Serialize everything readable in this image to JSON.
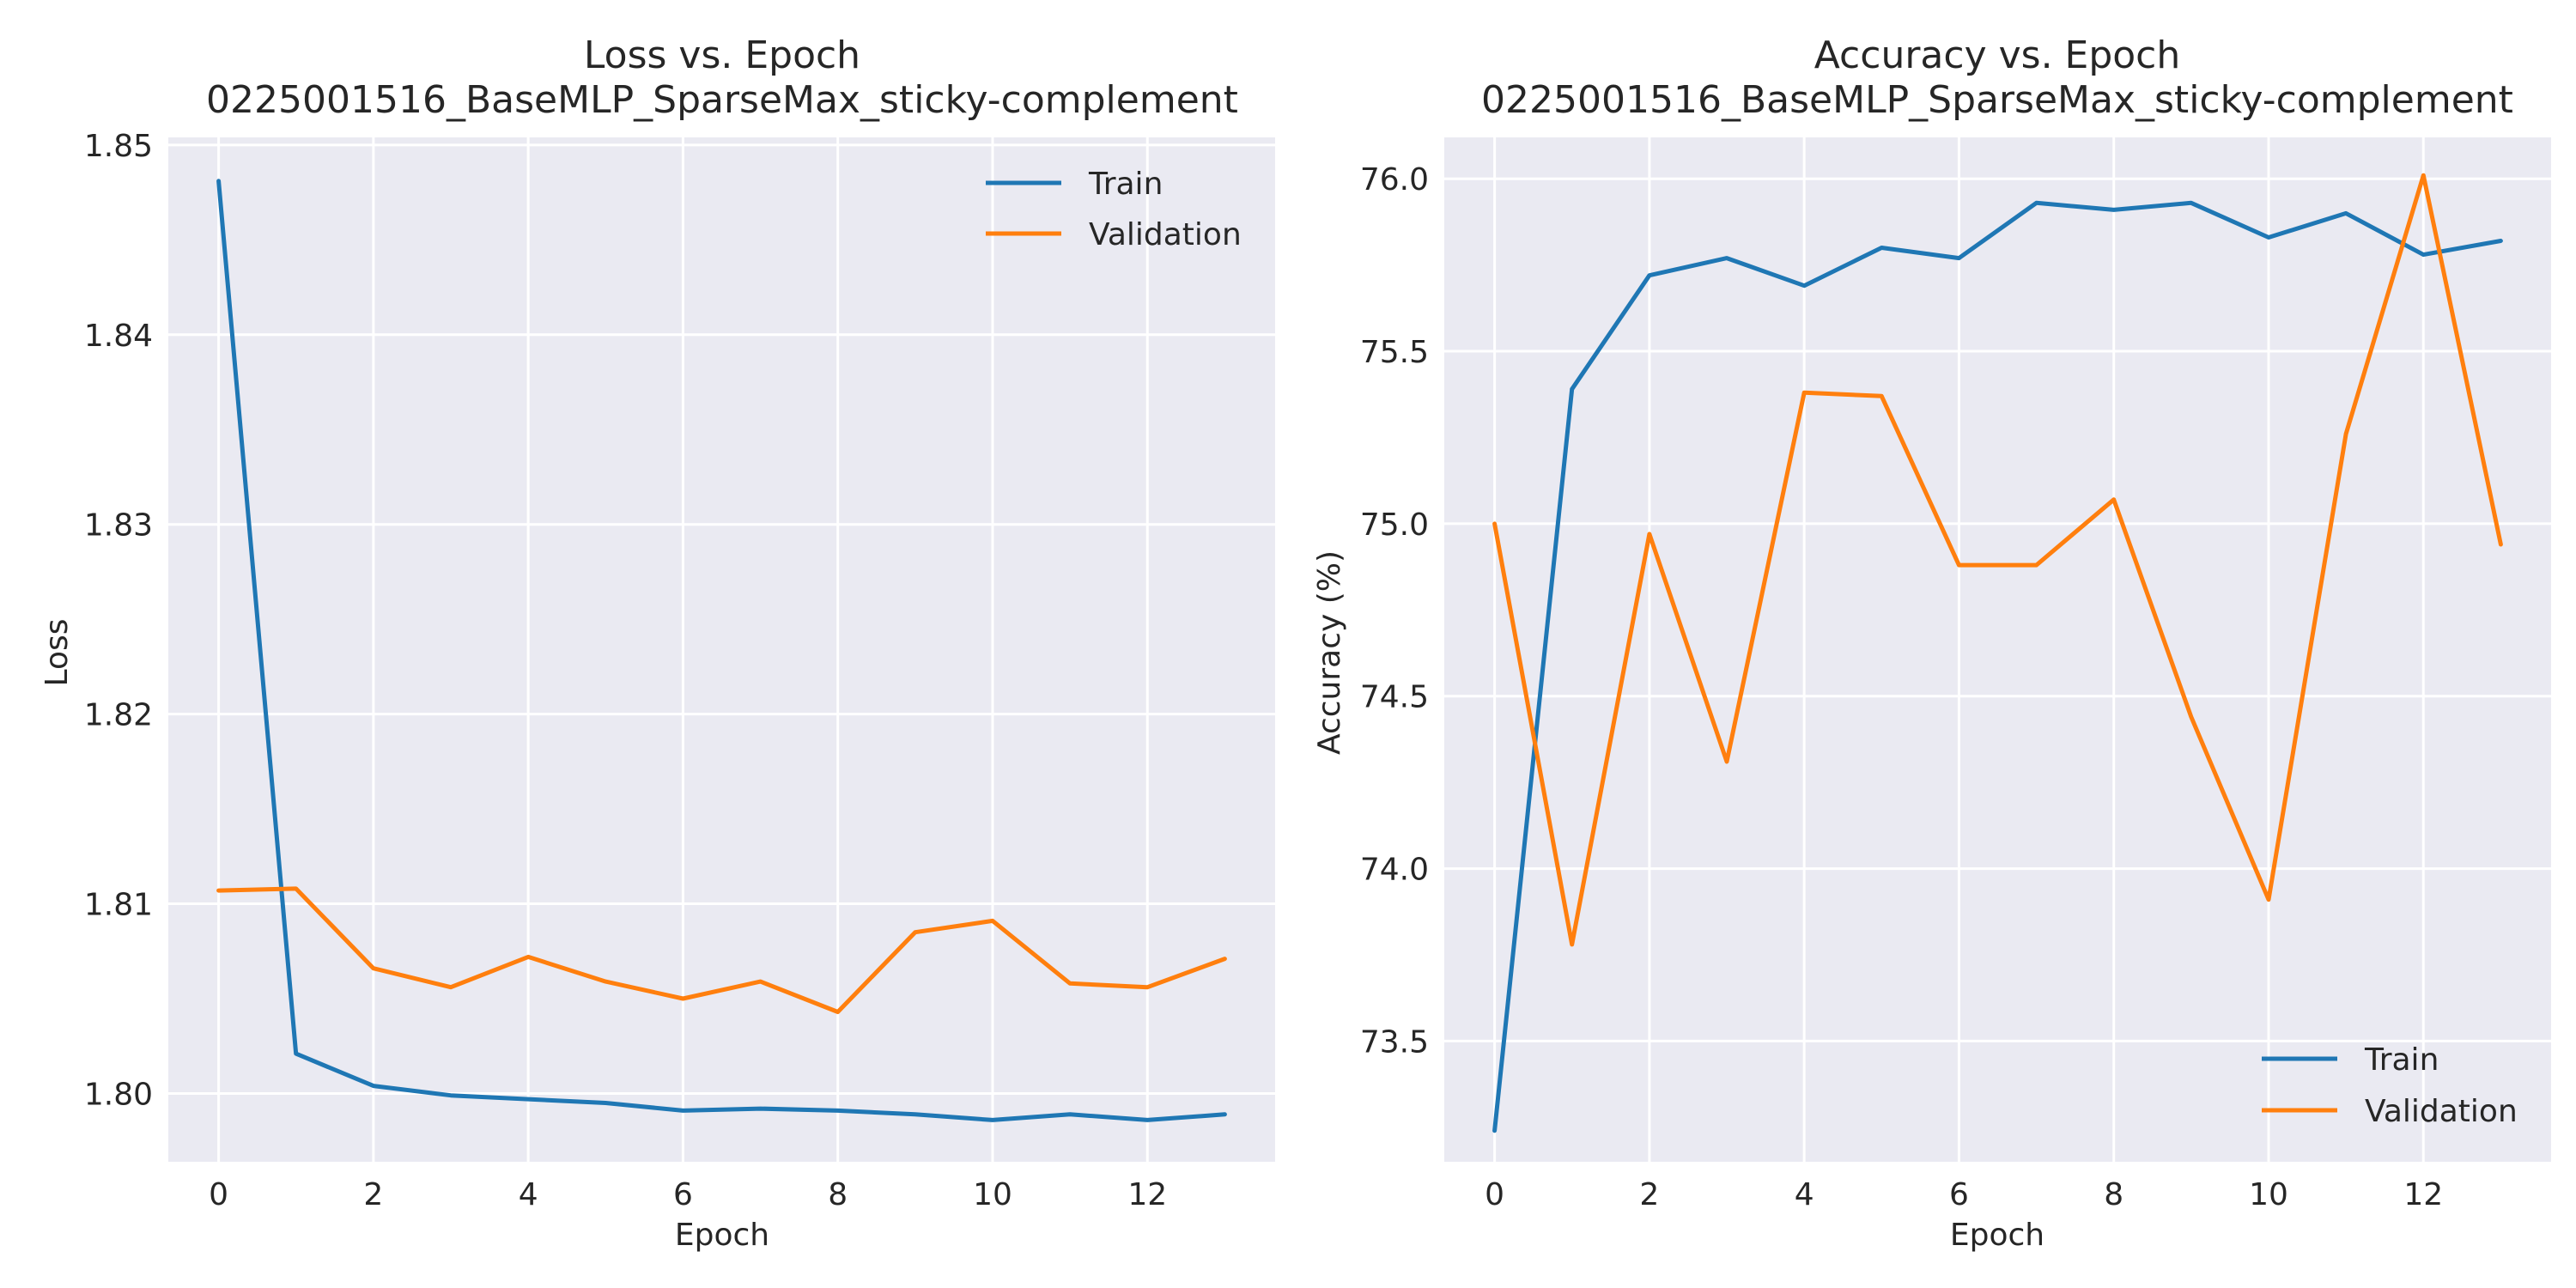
{
  "colors": {
    "train": "#1f77b4",
    "validation": "#ff7f0e",
    "plot_bg": "#eaeaf2",
    "grid": "#ffffff",
    "text": "#262626"
  },
  "chart_data": [
    {
      "type": "line",
      "title": "Loss vs. Epoch",
      "subtitle": "0225001516_BaseMLP_SparseMax_sticky-complement",
      "xlabel": "Epoch",
      "ylabel": "Loss",
      "xlim": [
        -0.65,
        13.65
      ],
      "ylim": [
        1.7964,
        1.8504
      ],
      "xticks": [
        0,
        2,
        4,
        6,
        8,
        10,
        12
      ],
      "yticks": [
        1.8,
        1.81,
        1.82,
        1.83,
        1.84,
        1.85
      ],
      "ytick_labels": [
        "1.80",
        "1.81",
        "1.82",
        "1.83",
        "1.84",
        "1.85"
      ],
      "grid": true,
      "legend_position": "upper right",
      "x": [
        0,
        1,
        2,
        3,
        4,
        5,
        6,
        7,
        8,
        9,
        10,
        11,
        12,
        13
      ],
      "series": [
        {
          "name": "Train",
          "color": "#1f77b4",
          "values": [
            1.8481,
            1.8021,
            1.8004,
            1.7999,
            1.7997,
            1.7995,
            1.7991,
            1.7992,
            1.7991,
            1.7989,
            1.7986,
            1.7989,
            1.7986,
            1.7989
          ]
        },
        {
          "name": "Validation",
          "color": "#ff7f0e",
          "values": [
            1.8107,
            1.8108,
            1.8066,
            1.8056,
            1.8072,
            1.8059,
            1.805,
            1.8059,
            1.8043,
            1.8085,
            1.8091,
            1.8058,
            1.8056,
            1.8071
          ]
        }
      ]
    },
    {
      "type": "line",
      "title": "Accuracy vs. Epoch",
      "subtitle": "0225001516_BaseMLP_SparseMax_sticky-complement",
      "xlabel": "Epoch",
      "ylabel": "Accuracy (%)",
      "xlim": [
        -0.65,
        13.65
      ],
      "ylim": [
        73.15,
        76.12
      ],
      "xticks": [
        0,
        2,
        4,
        6,
        8,
        10,
        12
      ],
      "yticks": [
        73.5,
        74.0,
        74.5,
        75.0,
        75.5,
        76.0
      ],
      "ytick_labels": [
        "73.5",
        "74.0",
        "74.5",
        "75.0",
        "75.5",
        "76.0"
      ],
      "grid": true,
      "legend_position": "lower right",
      "x": [
        0,
        1,
        2,
        3,
        4,
        5,
        6,
        7,
        8,
        9,
        10,
        11,
        12,
        13
      ],
      "series": [
        {
          "name": "Train",
          "color": "#1f77b4",
          "values": [
            73.24,
            75.39,
            75.72,
            75.77,
            75.69,
            75.8,
            75.77,
            75.93,
            75.91,
            75.93,
            75.83,
            75.9,
            75.78,
            75.82
          ]
        },
        {
          "name": "Validation",
          "color": "#ff7f0e",
          "values": [
            75.0,
            73.78,
            74.97,
            74.31,
            75.38,
            75.37,
            74.88,
            74.88,
            75.07,
            74.44,
            73.91,
            75.26,
            76.01,
            74.94
          ]
        }
      ]
    }
  ]
}
